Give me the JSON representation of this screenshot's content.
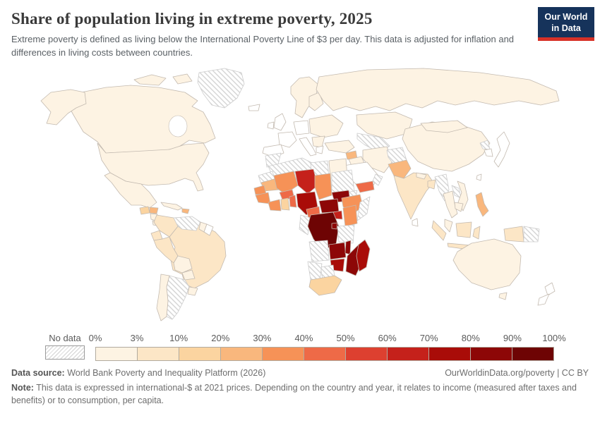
{
  "header": {
    "title": "Share of population living in extreme poverty, 2025",
    "subtitle": "Extreme poverty is defined as living below the International Poverty Line of $3 per day. This data is adjusted for inflation and differences in living costs between countries.",
    "logo": {
      "line1": "Our World",
      "line2": "in Data",
      "bg_color": "#16335b",
      "accent_color": "#d73127"
    }
  },
  "legend": {
    "no_data_label": "No data",
    "tick_labels": [
      "0%",
      "3%",
      "10%",
      "20%",
      "30%",
      "40%",
      "50%",
      "60%",
      "70%",
      "80%",
      "90%",
      "100%"
    ],
    "bin_colors": [
      "#fdf3e3",
      "#fce6c6",
      "#fbd4a0",
      "#f9b77d",
      "#f69257",
      "#ee6a47",
      "#dd4030",
      "#c5211b",
      "#a90c08",
      "#8d0707",
      "#6e0404"
    ]
  },
  "map": {
    "blank_color": "#ffffff",
    "no_data_pattern": "diagonal-hatch",
    "border_color": "#c3bab0",
    "regions": {
      "canada": 0,
      "arctic_islands": 0,
      "alaska": 0,
      "greenland": "no_data",
      "usa": 0,
      "mexico": 0,
      "guatemala": 2,
      "honduras": 3,
      "nicaragua": 0,
      "costa_rica_panama": 0,
      "cuba": 0,
      "hispaniola": 3,
      "colombia": 1,
      "venezuela": "no_data",
      "guyana": 0,
      "suriname": "blank",
      "ecuador": 1,
      "peru": 1,
      "brazil": 1,
      "bolivia": 0,
      "paraguay": 0,
      "chile": 0,
      "argentina": "no_data",
      "uruguay": 0,
      "iceland": "blank",
      "uk": "blank",
      "ireland": "blank",
      "france": "blank",
      "iberia": "blank",
      "central_europe": "blank",
      "italy": "blank",
      "greece": "blank",
      "scandinavia": 0,
      "finland": 0,
      "eastern_europe": 0,
      "balkans": 0,
      "russia": 0,
      "kazakhstan": 0,
      "central_asia": "no_data",
      "turkey": 0,
      "syria": 3,
      "iraq": 0,
      "iran": 0,
      "saudi_arabia": "blank",
      "yemen": 5,
      "oman": "no_data",
      "afghanistan": "no_data",
      "pakistan": 3,
      "india": 1,
      "nepal": 0,
      "bangladesh": 1,
      "sri_lanka": "blank",
      "myanmar": "no_data",
      "thailand": 0,
      "laos": "no_data",
      "vietnam": 0,
      "cambodia": 0,
      "china": 0,
      "mongolia": 0,
      "north_korea": "no_data",
      "south_korea": "blank",
      "japan": "blank",
      "taiwan": "blank",
      "philippines": 3,
      "malaysia": 0,
      "sumatra": 1,
      "borneo": 1,
      "java": 1,
      "sulawesi": 1,
      "west_new_guinea": 1,
      "papua_new_guinea": "no_data",
      "australia": 0,
      "tasmania": 0,
      "new_zealand": "blank",
      "morocco": "no_data",
      "western_sahara": "no_data",
      "algeria": "no_data",
      "libya": "no_data",
      "egypt": 0,
      "mauritania": 3,
      "senegal": 4,
      "mali": 4,
      "burkina_faso": 5,
      "niger": 7,
      "chad": 4,
      "sudan": "no_data",
      "eritrea": "no_data",
      "ethiopia": 4,
      "somalia": "no_data",
      "guinea": 4,
      "ivory_coast": 4,
      "ghana": 2,
      "benin": 5,
      "nigeria": 8,
      "cameroon": 5,
      "central_african_republic": 9,
      "south_sudan": 9,
      "uganda": 7,
      "kenya": 4,
      "rwanda_burundi": 9,
      "drc": 10,
      "congo_gabon": "no_data",
      "tanzania": "no_data",
      "angola": "no_data",
      "zambia": 9,
      "malawi": 9,
      "mozambique": 9,
      "zimbabwe": 8,
      "botswana": "no_data",
      "namibia": "no_data",
      "south_africa": 2,
      "madagascar": 8
    }
  },
  "chart_data": {
    "type": "choropleth_map",
    "title": "Share of population living in extreme poverty, 2025",
    "unit": "% of population below the International Poverty Line of $3 per day",
    "legend_bins": [
      "0%",
      "3%",
      "10%",
      "20%",
      "30%",
      "40%",
      "50%",
      "60%",
      "70%",
      "80%",
      "90%",
      "100%"
    ],
    "bin_ranges": [
      "0-3%",
      "3-10%",
      "10-20%",
      "20-30%",
      "30-40%",
      "40-50%",
      "50-60%",
      "60-70%",
      "70-80%",
      "80-90%",
      "90-100%"
    ],
    "values_by_bin": {
      "0-3%": [
        "United States",
        "Canada",
        "Mexico",
        "Russia",
        "China",
        "Mongolia",
        "Kazakhstan",
        "Turkey",
        "Iran",
        "Egypt",
        "Australia",
        "Thailand",
        "Vietnam",
        "Chile",
        "Bolivia",
        "Paraguay",
        "Uruguay",
        "Scandinavia",
        "Eastern Europe"
      ],
      "3-10%": [
        "Brazil",
        "Colombia",
        "Peru",
        "Ecuador",
        "India",
        "Bangladesh",
        "Indonesia"
      ],
      "10-20%": [
        "Guatemala",
        "Ghana",
        "South Africa"
      ],
      "20-30%": [
        "Honduras",
        "Haiti",
        "Syria",
        "Pakistan",
        "Philippines",
        "Mauritania"
      ],
      "30-40%": [
        "Senegal",
        "Mali",
        "Chad",
        "Guinea",
        "Ivory Coast",
        "Ethiopia",
        "Kenya"
      ],
      "40-50%": [
        "Burkina Faso",
        "Benin",
        "Cameroon",
        "Yemen"
      ],
      "60-70%": [
        "Niger",
        "Uganda"
      ],
      "70-80%": [
        "Nigeria",
        "Zimbabwe",
        "Madagascar"
      ],
      "80-90%": [
        "Central African Republic",
        "South Sudan",
        "Zambia",
        "Malawi",
        "Mozambique",
        "Rwanda",
        "Burundi"
      ],
      "90-100%": [
        "Democratic Republic of Congo"
      ],
      "No data": [
        "Greenland",
        "Venezuela",
        "Argentina",
        "Morocco",
        "Algeria",
        "Libya",
        "Sudan",
        "Eritrea",
        "Somalia",
        "Tanzania",
        "Angola",
        "Namibia",
        "Botswana",
        "Congo/Gabon",
        "Afghanistan",
        "Turkmenistan/Uzbekistan",
        "Myanmar",
        "Laos",
        "North Korea",
        "Oman",
        "Papua New Guinea"
      ]
    }
  },
  "footer": {
    "datasource_label": "Data source:",
    "datasource_value": " World Bank Poverty and Inequality Platform (2026)",
    "link": "OurWorldinData.org/poverty | CC BY",
    "note_label": "Note:",
    "note_value": " This data is expressed in international-$ at 2021 prices. Depending on the country and year, it relates to income (measured after taxes and benefits) or to consumption, per capita."
  }
}
